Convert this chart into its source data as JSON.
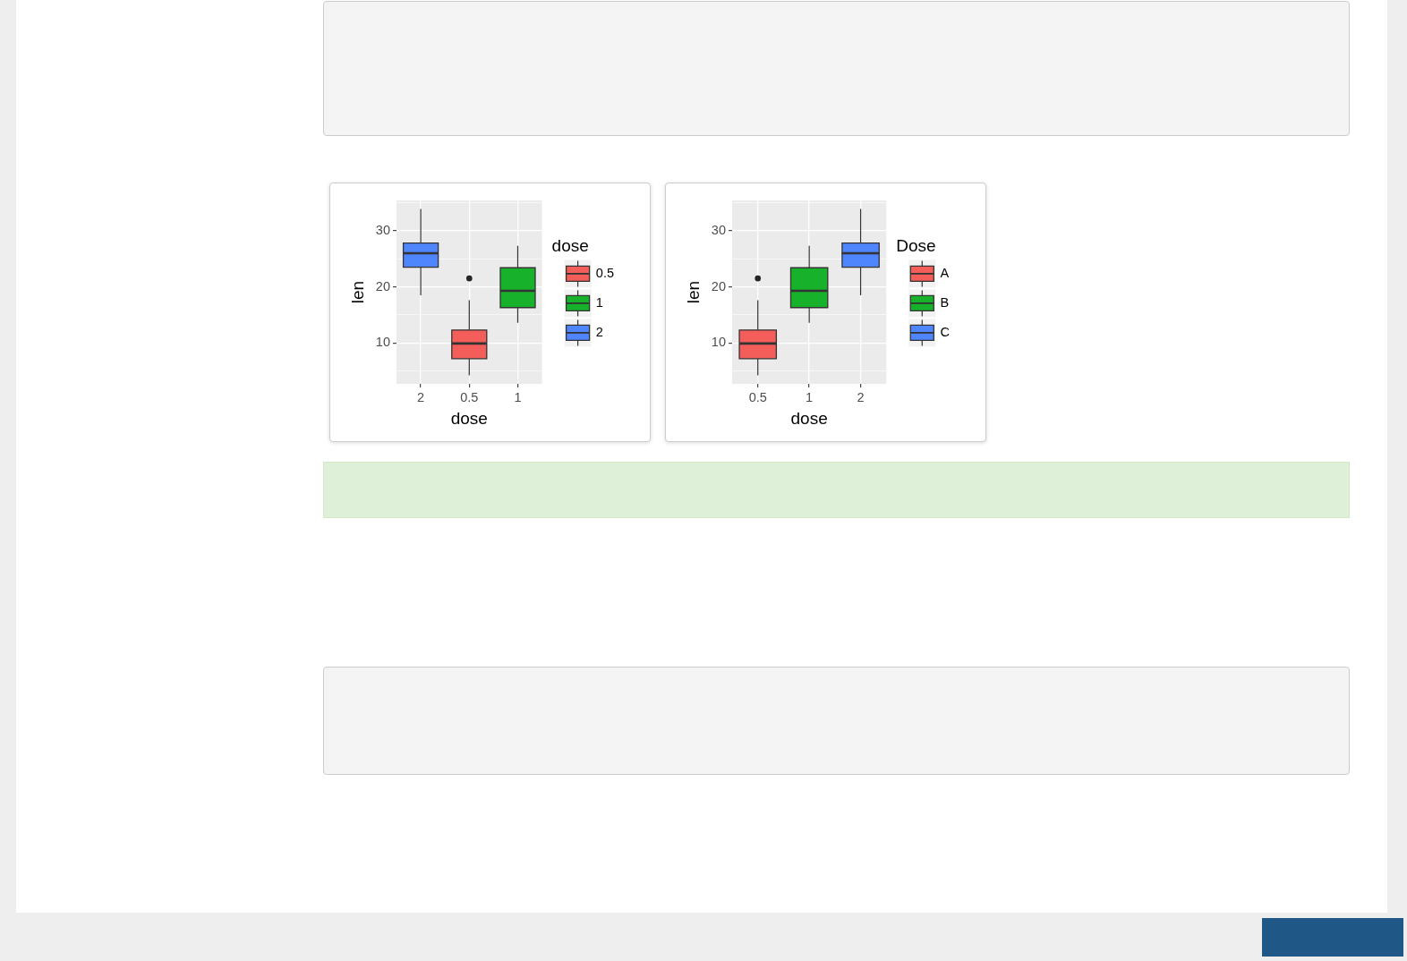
{
  "chart_data": [
    {
      "type": "box",
      "xlabel": "dose",
      "ylabel": "len",
      "legend_title": "dose",
      "categories": [
        "2",
        "0.5",
        "1"
      ],
      "series": [
        {
          "name": "0.5",
          "color": "#f35e5a",
          "boxes": [
            null,
            {
              "low": 4.2,
              "q1": 7.2,
              "median": 9.9,
              "q3": 12.3,
              "high": 17.6,
              "outliers": [
                21.5
              ]
            },
            null
          ]
        },
        {
          "name": "1",
          "color": "#18b12c",
          "boxes": [
            null,
            null,
            {
              "low": 13.6,
              "q1": 16.3,
              "median": 19.3,
              "q3": 23.4,
              "high": 27.3
            }
          ]
        },
        {
          "name": "2",
          "color": "#4f85fd",
          "boxes": [
            {
              "low": 18.5,
              "q1": 23.5,
              "median": 26.0,
              "q3": 27.8,
              "high": 33.9
            },
            null,
            null
          ]
        }
      ],
      "ylim": [
        2.7,
        35.4
      ],
      "yticks": [
        {
          "value": 5,
          "label": null
        },
        10,
        {
          "value": 15,
          "label": null
        },
        20,
        {
          "value": 25,
          "label": null
        },
        30,
        {
          "value": 35,
          "label": null
        }
      ],
      "grid": true,
      "legend": "right"
    },
    {
      "type": "box",
      "xlabel": "dose",
      "ylabel": "len",
      "legend_title": "Dose",
      "categories": [
        "0.5",
        "1",
        "2"
      ],
      "series": [
        {
          "name": "A",
          "color": "#f35e5a",
          "boxes": [
            {
              "low": 4.2,
              "q1": 7.2,
              "median": 9.9,
              "q3": 12.3,
              "high": 17.6,
              "outliers": [
                21.5
              ]
            },
            null,
            null
          ]
        },
        {
          "name": "B",
          "color": "#18b12c",
          "boxes": [
            null,
            {
              "low": 13.6,
              "q1": 16.3,
              "median": 19.3,
              "q3": 23.4,
              "high": 27.3
            },
            null
          ]
        },
        {
          "name": "C",
          "color": "#4f85fd",
          "boxes": [
            null,
            null,
            {
              "low": 18.5,
              "q1": 23.5,
              "median": 26.0,
              "q3": 27.8,
              "high": 33.9
            }
          ]
        }
      ],
      "ylim": [
        2.7,
        35.4
      ],
      "yticks": [
        {
          "value": 5,
          "label": null
        },
        10,
        {
          "value": 15,
          "label": null
        },
        20,
        {
          "value": 25,
          "label": null
        },
        30,
        {
          "value": 35,
          "label": null
        }
      ],
      "grid": true,
      "legend": "right"
    }
  ]
}
